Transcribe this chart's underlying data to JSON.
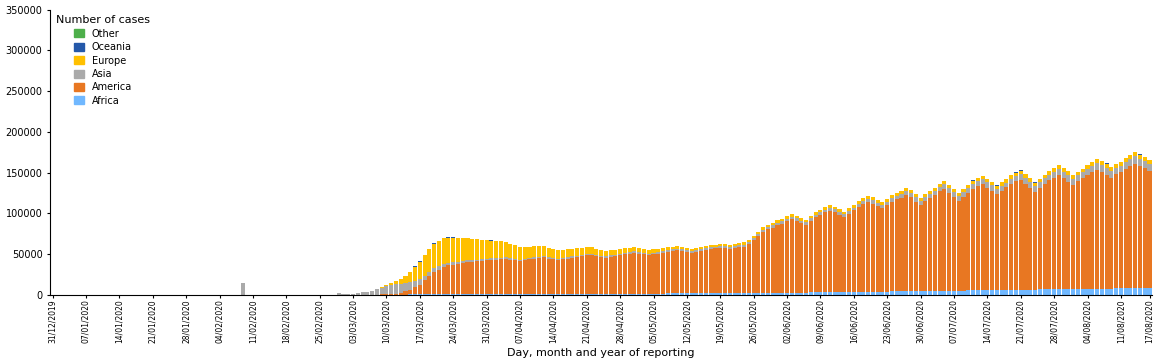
{
  "xlabel": "Day, month and year of reporting",
  "legend_title": "Number of cases",
  "ylim": [
    0,
    350000
  ],
  "yticks": [
    0,
    50000,
    100000,
    150000,
    200000,
    250000,
    300000,
    350000
  ],
  "colors": {
    "Africa": "#70B8FF",
    "America": "#E87722",
    "Asia": "#AAAAAA",
    "Europe": "#FFC000",
    "Oceania": "#2458A9",
    "Other": "#4DAF4A"
  },
  "stack_order": [
    "Africa",
    "America",
    "Asia",
    "Europe",
    "Oceania",
    "Other"
  ],
  "legend_order": [
    "Other",
    "Oceania",
    "Europe",
    "Asia",
    "America",
    "Africa"
  ],
  "background_color": "#FFFFFF",
  "dates": [
    "31/12/2019",
    "01/01/2020",
    "02/01/2020",
    "03/01/2020",
    "04/01/2020",
    "05/01/2020",
    "06/01/2020",
    "07/01/2020",
    "08/01/2020",
    "09/01/2020",
    "10/01/2020",
    "11/01/2020",
    "12/01/2020",
    "13/01/2020",
    "14/01/2020",
    "15/01/2020",
    "16/01/2020",
    "17/01/2020",
    "18/01/2020",
    "19/01/2020",
    "20/01/2020",
    "21/01/2020",
    "22/01/2020",
    "23/01/2020",
    "24/01/2020",
    "25/01/2020",
    "26/01/2020",
    "27/01/2020",
    "28/01/2020",
    "29/01/2020",
    "30/01/2020",
    "31/01/2020",
    "01/02/2020",
    "02/02/2020",
    "03/02/2020",
    "04/02/2020",
    "05/02/2020",
    "06/02/2020",
    "07/02/2020",
    "08/02/2020",
    "09/02/2020",
    "10/02/2020",
    "11/02/2020",
    "12/02/2020",
    "13/02/2020",
    "14/02/2020",
    "15/02/2020",
    "16/02/2020",
    "17/02/2020",
    "18/02/2020",
    "19/02/2020",
    "20/02/2020",
    "21/02/2020",
    "22/02/2020",
    "23/02/2020",
    "24/02/2020",
    "25/02/2020",
    "26/02/2020",
    "27/02/2020",
    "28/02/2020",
    "29/02/2020",
    "01/03/2020",
    "02/03/2020",
    "03/03/2020",
    "04/03/2020",
    "05/03/2020",
    "06/03/2020",
    "07/03/2020",
    "08/03/2020",
    "09/03/2020",
    "10/03/2020",
    "11/03/2020",
    "12/03/2020",
    "13/03/2020",
    "14/03/2020",
    "15/03/2020",
    "16/03/2020",
    "17/03/2020",
    "18/03/2020",
    "19/03/2020",
    "20/03/2020",
    "21/03/2020",
    "22/03/2020",
    "23/03/2020",
    "24/03/2020",
    "25/03/2020",
    "26/03/2020",
    "27/03/2020",
    "28/03/2020",
    "29/03/2020",
    "30/03/2020",
    "31/03/2020",
    "01/04/2020",
    "02/04/2020",
    "03/04/2020",
    "04/04/2020",
    "05/04/2020",
    "06/04/2020",
    "07/04/2020",
    "08/04/2020",
    "09/04/2020",
    "10/04/2020",
    "11/04/2020",
    "12/04/2020",
    "13/04/2020",
    "14/04/2020",
    "15/04/2020",
    "16/04/2020",
    "17/04/2020",
    "18/04/2020",
    "19/04/2020",
    "20/04/2020",
    "21/04/2020",
    "22/04/2020",
    "23/04/2020",
    "24/04/2020",
    "25/04/2020",
    "26/04/2020",
    "27/04/2020",
    "28/04/2020",
    "29/04/2020",
    "30/04/2020",
    "01/05/2020",
    "02/05/2020",
    "03/05/2020",
    "04/05/2020",
    "05/05/2020",
    "06/05/2020",
    "07/05/2020",
    "08/05/2020",
    "09/05/2020",
    "10/05/2020",
    "11/05/2020",
    "12/05/2020",
    "13/05/2020",
    "14/05/2020",
    "15/05/2020",
    "16/05/2020",
    "17/05/2020",
    "18/05/2020",
    "19/05/2020",
    "20/05/2020",
    "21/05/2020",
    "22/05/2020",
    "23/05/2020",
    "24/05/2020",
    "25/05/2020",
    "26/05/2020",
    "27/05/2020",
    "28/05/2020",
    "29/05/2020",
    "30/05/2020",
    "31/05/2020",
    "01/06/2020",
    "02/06/2020",
    "03/06/2020",
    "04/06/2020",
    "05/06/2020",
    "06/06/2020",
    "07/06/2020",
    "08/06/2020",
    "09/06/2020",
    "10/06/2020",
    "11/06/2020",
    "12/06/2020",
    "13/06/2020",
    "14/06/2020",
    "15/06/2020",
    "16/06/2020",
    "17/06/2020",
    "18/06/2020",
    "19/06/2020",
    "20/06/2020",
    "21/06/2020",
    "22/06/2020",
    "23/06/2020",
    "24/06/2020",
    "25/06/2020",
    "26/06/2020",
    "27/06/2020",
    "28/06/2020",
    "29/06/2020",
    "30/06/2020",
    "01/07/2020",
    "02/07/2020",
    "03/07/2020",
    "04/07/2020",
    "05/07/2020",
    "06/07/2020",
    "07/07/2020",
    "08/07/2020",
    "09/07/2020",
    "10/07/2020",
    "11/07/2020",
    "12/07/2020",
    "13/07/2020",
    "14/07/2020",
    "15/07/2020",
    "16/07/2020",
    "17/07/2020",
    "18/07/2020",
    "19/07/2020",
    "20/07/2020",
    "21/07/2020",
    "22/07/2020",
    "23/07/2020",
    "24/07/2020",
    "25/07/2020",
    "26/07/2020",
    "27/07/2020",
    "28/07/2020",
    "29/07/2020",
    "30/07/2020",
    "31/07/2020",
    "01/08/2020",
    "02/08/2020",
    "03/08/2020",
    "04/08/2020",
    "05/08/2020",
    "06/08/2020",
    "07/08/2020",
    "08/08/2020",
    "09/08/2020",
    "10/08/2020",
    "11/08/2020",
    "12/08/2020",
    "13/08/2020",
    "14/08/2020",
    "15/08/2020",
    "16/08/2020",
    "17/08/2020"
  ]
}
